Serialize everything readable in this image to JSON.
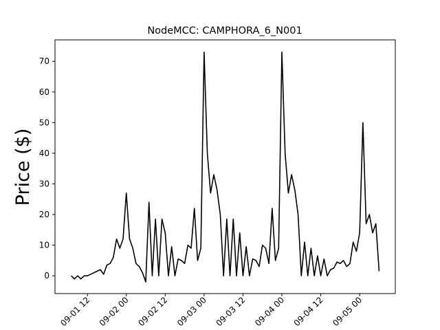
{
  "chart_data": {
    "type": "line",
    "title": "NodeMCC: CAMPHORA_6_N001",
    "y_label": "Price ($)",
    "x": [
      "09-01 07",
      "09-01 08",
      "09-01 09",
      "09-01 10",
      "09-01 11",
      "09-01 12",
      "09-01 13",
      "09-01 14",
      "09-01 15",
      "09-01 16",
      "09-01 17",
      "09-01 18",
      "09-01 19",
      "09-01 20",
      "09-01 21",
      "09-01 22",
      "09-01 23",
      "09-02 00",
      "09-02 01",
      "09-02 02",
      "09-02 03",
      "09-02 04",
      "09-02 05",
      "09-02 06",
      "09-02 07",
      "09-02 08",
      "09-02 09",
      "09-02 10",
      "09-02 11",
      "09-02 12",
      "09-02 13",
      "09-02 14",
      "09-02 15",
      "09-02 16",
      "09-02 17",
      "09-02 18",
      "09-02 19",
      "09-02 20",
      "09-02 21",
      "09-02 22",
      "09-02 23",
      "09-03 00",
      "09-03 01",
      "09-03 02",
      "09-03 03",
      "09-03 04",
      "09-03 05",
      "09-03 06",
      "09-03 07",
      "09-03 08",
      "09-03 09",
      "09-03 10",
      "09-03 11",
      "09-03 12",
      "09-03 13",
      "09-03 14",
      "09-03 15",
      "09-03 16",
      "09-03 17",
      "09-03 18",
      "09-03 19",
      "09-03 20",
      "09-03 21",
      "09-03 22",
      "09-03 23",
      "09-04 00",
      "09-04 01",
      "09-04 02",
      "09-04 03",
      "09-04 04",
      "09-04 05",
      "09-04 06",
      "09-04 07",
      "09-04 08",
      "09-04 09",
      "09-04 10",
      "09-04 11",
      "09-04 12",
      "09-04 13",
      "09-04 14",
      "09-04 15",
      "09-04 16",
      "09-04 17",
      "09-04 18",
      "09-04 19",
      "09-04 20",
      "09-04 21",
      "09-04 22",
      "09-04 23",
      "09-05 00",
      "09-05 01",
      "09-05 02",
      "09-05 03",
      "09-05 04",
      "09-05 05",
      "09-05 06"
    ],
    "series": [
      {
        "color": "#000000",
        "values": [
          0,
          -1,
          0,
          -1,
          0,
          0,
          0.5,
          1,
          1.5,
          2,
          0.5,
          3.5,
          4,
          6,
          12,
          9,
          12,
          27,
          12,
          9,
          4,
          3,
          1,
          -2,
          24,
          0,
          18.5,
          0,
          18.5,
          14,
          0,
          9.5,
          0,
          5.5,
          5,
          4,
          10,
          9,
          22,
          5,
          9,
          73,
          40,
          27,
          33,
          28,
          20,
          0,
          18.5,
          0,
          18.5,
          0,
          14,
          0,
          9.5,
          0,
          5.5,
          5,
          3,
          10,
          9,
          4,
          22,
          5,
          9,
          73,
          40,
          27,
          33,
          28,
          20,
          0,
          11,
          0,
          9,
          0,
          6.5,
          0,
          5.5,
          0,
          2,
          2.5,
          4.5,
          4,
          5,
          3,
          4,
          11,
          8,
          14,
          50,
          17,
          20,
          14,
          17,
          1.5
        ]
      }
    ],
    "xlim": [
      "09-01 02",
      "09-05 11"
    ],
    "xticks": [
      "09-01 12",
      "09-02 00",
      "09-02 12",
      "09-03 00",
      "09-03 12",
      "09-04 00",
      "09-04 12",
      "09-05 00"
    ],
    "ylim": [
      -5.8,
      77
    ],
    "yticks": [
      0,
      10,
      20,
      30,
      40,
      50,
      60,
      70
    ]
  }
}
